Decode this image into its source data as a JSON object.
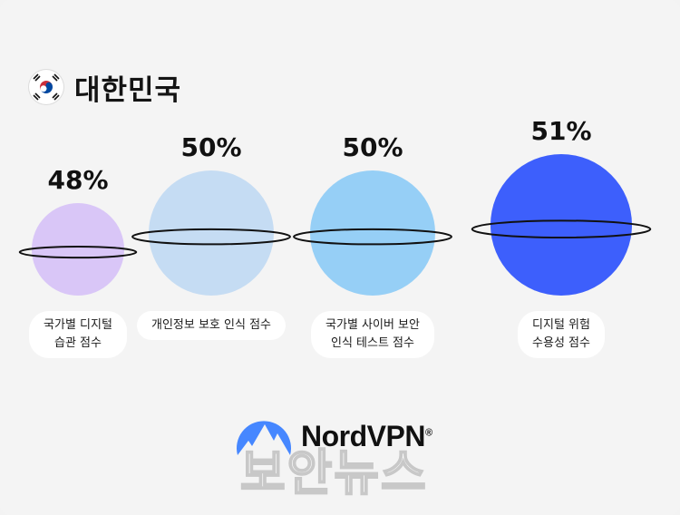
{
  "header": {
    "title": "대한민국",
    "flag_icon": "south-korea-flag-icon"
  },
  "chart_data": {
    "type": "bubble",
    "title": "대한민국",
    "series": [
      {
        "label": "국가별 디지털\n습관 점수",
        "value": 48,
        "display": "48%",
        "color": "#d9c6f7"
      },
      {
        "label": "개인정보 보호 인식 점수",
        "value": 50,
        "display": "50%",
        "color": "#c5dcf3"
      },
      {
        "label": "국가별 사이버 보안\n인식 테스트 점수",
        "value": 50,
        "display": "50%",
        "color": "#96cff6"
      },
      {
        "label": "디지털 위험\n수용성 점수",
        "value": 51,
        "display": "51%",
        "color": "#3d5ffc"
      }
    ]
  },
  "branding": {
    "logo_text": "NordVPN",
    "logo_mark": "®",
    "logo_icon": "nordvpn-mountain-icon",
    "watermark": "보안뉴스"
  },
  "colors": {
    "background": "#f4f4f4",
    "ring": "#111111",
    "logo_blue": "#4687ff"
  }
}
